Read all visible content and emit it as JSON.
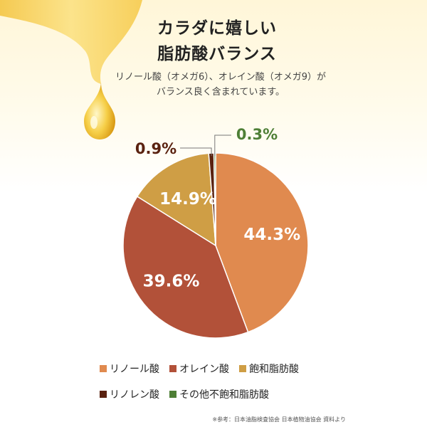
{
  "header": {
    "title_line1": "カラダに嬉しい",
    "title_line2": "脂肪酸バランス",
    "desc_line1": "リノール酸（オメガ6）、オレイン酸（オメガ9）が",
    "desc_line2": "バランス良く含まれています。"
  },
  "chart_data": {
    "type": "pie",
    "series": [
      {
        "name": "リノール酸",
        "value": 44.3,
        "label": "44.3%",
        "color": "#e08a4f"
      },
      {
        "name": "オレイン酸",
        "value": 39.6,
        "label": "39.6%",
        "color": "#b25139"
      },
      {
        "name": "飽和脂肪酸",
        "value": 14.9,
        "label": "14.9%",
        "color": "#cf9e45"
      },
      {
        "name": "リノレン酸",
        "value": 0.9,
        "label": "0.9%",
        "color": "#5a2210"
      },
      {
        "name": "その他不飽和脂肪酸",
        "value": 0.3,
        "label": "0.3%",
        "color": "#4e7f36"
      }
    ]
  },
  "legend": {
    "row1": [
      "リノール酸",
      "オレイン酸",
      "飽和脂肪酸"
    ],
    "row2": [
      "リノレン酸",
      "その他不飽和脂肪酸"
    ]
  },
  "footer": {
    "source": "※参考：日本油脂検査協会  日本植物油協会  資料より"
  },
  "decoration": {
    "drop_icon": "oil-drop-icon"
  }
}
